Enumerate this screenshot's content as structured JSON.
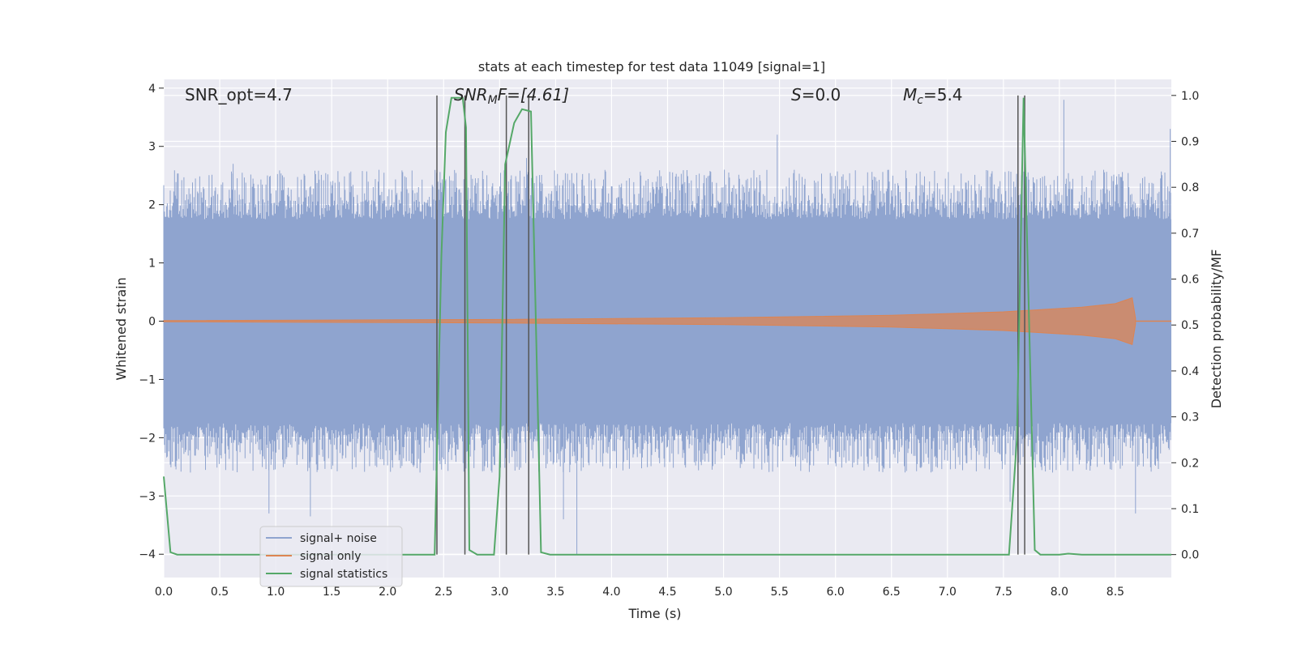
{
  "chart_data": {
    "type": "line",
    "title": "stats at each timestep for test data 11049 [signal=1]",
    "xlabel": "Time (s)",
    "ylabel": "Whitened strain",
    "y2label": "Detection probability/MF",
    "xlim": [
      0.0,
      9.0
    ],
    "ylim": [
      -4.4,
      4.15
    ],
    "y2lim": [
      -0.05,
      1.035
    ],
    "xticks": [
      "0.0",
      "0.5",
      "1.0",
      "1.5",
      "2.0",
      "2.5",
      "3.0",
      "3.5",
      "4.0",
      "4.5",
      "5.0",
      "5.5",
      "6.0",
      "6.5",
      "7.0",
      "7.5",
      "8.0",
      "8.5"
    ],
    "yticks": [
      "4",
      "3",
      "2",
      "1",
      "0",
      "−1",
      "−2",
      "−3",
      "−4"
    ],
    "y2ticks": [
      "1.0",
      "0.9",
      "0.8",
      "0.7",
      "0.6",
      "0.5",
      "0.4",
      "0.3",
      "0.2",
      "0.1",
      "0.0"
    ],
    "grid": true,
    "legend_placement": "lower-left",
    "annotations": {
      "snr_opt": "SNR_opt=4.7",
      "snr_mf_main": "SNR",
      "snr_mf_sub": "M",
      "snr_mf_rest": "F=[4.61]",
      "s_main": "S",
      "s_rest": "=0.0",
      "mc_main": "M",
      "mc_sub": "c",
      "mc_rest": "=5.4"
    },
    "series": [
      {
        "name": "signal+ noise",
        "color": "#8fa4cf",
        "kind": "noise-band",
        "core_amplitude": [
          -1.75,
          1.75
        ],
        "typical_peaks": [
          -2.6,
          2.6
        ],
        "extreme_peaks": [
          {
            "x": 0.94,
            "y": -3.3
          },
          {
            "x": 1.31,
            "y": -3.35
          },
          {
            "x": 2.69,
            "y": 3.2
          },
          {
            "x": 3.57,
            "y": -3.4
          },
          {
            "x": 3.69,
            "y": -4.0
          },
          {
            "x": 7.56,
            "y": -3.1
          },
          {
            "x": 8.04,
            "y": 3.8
          },
          {
            "x": 8.68,
            "y": -3.3
          },
          {
            "x": 8.99,
            "y": 3.3
          },
          {
            "x": 3.24,
            "y": 2.8
          },
          {
            "x": 0.62,
            "y": 2.7
          },
          {
            "x": 5.48,
            "y": 3.2
          }
        ]
      },
      {
        "name": "signal only",
        "color": "#dd8452",
        "kind": "chirp",
        "envelope": [
          {
            "x": 0.0,
            "y": 0.01
          },
          {
            "x": 3.0,
            "y": 0.03
          },
          {
            "x": 5.0,
            "y": 0.06
          },
          {
            "x": 6.5,
            "y": 0.1
          },
          {
            "x": 7.5,
            "y": 0.16
          },
          {
            "x": 8.2,
            "y": 0.24
          },
          {
            "x": 8.5,
            "y": 0.3
          },
          {
            "x": 8.65,
            "y": 0.4
          },
          {
            "x": 8.68,
            "y": 0.05
          }
        ]
      },
      {
        "name": "signal statistics",
        "color": "#55a868",
        "axis": "right",
        "points": [
          {
            "x": 0.0,
            "y": 0.17
          },
          {
            "x": 0.06,
            "y": 0.005
          },
          {
            "x": 0.12,
            "y": 0.0
          },
          {
            "x": 2.42,
            "y": 0.0
          },
          {
            "x": 2.48,
            "y": 0.65
          },
          {
            "x": 2.52,
            "y": 0.92
          },
          {
            "x": 2.57,
            "y": 0.995
          },
          {
            "x": 2.67,
            "y": 0.995
          },
          {
            "x": 2.7,
            "y": 0.93
          },
          {
            "x": 2.73,
            "y": 0.01
          },
          {
            "x": 2.8,
            "y": 0.0
          },
          {
            "x": 2.95,
            "y": 0.0
          },
          {
            "x": 3.0,
            "y": 0.17
          },
          {
            "x": 3.05,
            "y": 0.85
          },
          {
            "x": 3.13,
            "y": 0.94
          },
          {
            "x": 3.2,
            "y": 0.97
          },
          {
            "x": 3.28,
            "y": 0.965
          },
          {
            "x": 3.32,
            "y": 0.55
          },
          {
            "x": 3.37,
            "y": 0.005
          },
          {
            "x": 3.45,
            "y": 0.0
          },
          {
            "x": 7.55,
            "y": 0.0
          },
          {
            "x": 7.62,
            "y": 0.25
          },
          {
            "x": 7.64,
            "y": 0.5
          },
          {
            "x": 7.68,
            "y": 0.995
          },
          {
            "x": 7.72,
            "y": 0.6
          },
          {
            "x": 7.78,
            "y": 0.01
          },
          {
            "x": 7.83,
            "y": 0.0
          },
          {
            "x": 8.0,
            "y": 0.0
          },
          {
            "x": 8.08,
            "y": 0.002
          },
          {
            "x": 8.2,
            "y": 0.0
          },
          {
            "x": 9.0,
            "y": 0.0
          }
        ]
      }
    ],
    "vertical_markers": [
      2.44,
      2.69,
      3.06,
      3.26,
      7.63,
      7.69
    ]
  }
}
